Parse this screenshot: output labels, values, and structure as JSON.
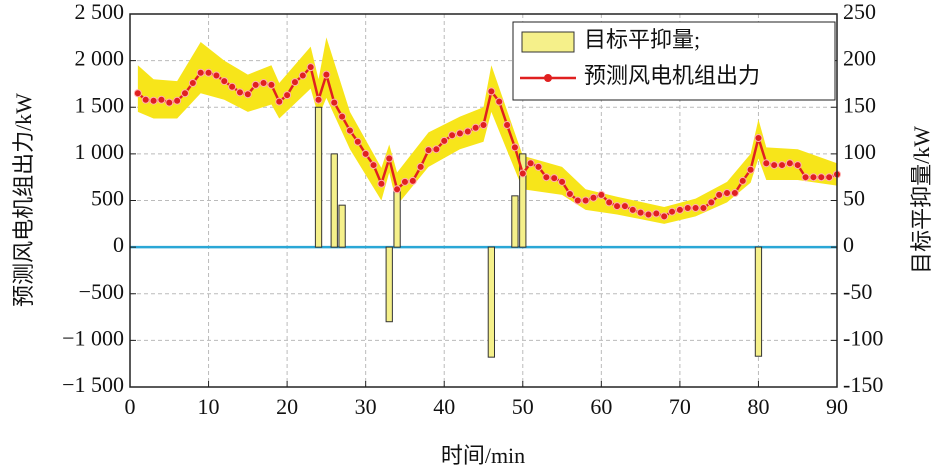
{
  "chart_data": {
    "type": "line",
    "xlabel": "时间/min",
    "ylabel": "预测风电机组出力/kW",
    "y2label": "目标平抑量/kW",
    "xlim": [
      0,
      90
    ],
    "xticks": [
      0,
      10,
      20,
      30,
      40,
      50,
      60,
      70,
      80,
      90
    ],
    "ylim": [
      -1500,
      2500
    ],
    "yticks": [
      {
        "value": -1500,
        "label": "−1 500"
      },
      {
        "value": -1000,
        "label": "−1 000"
      },
      {
        "value": -500,
        "label": "−500"
      },
      0,
      500,
      {
        "value": 1000,
        "label": "1 000"
      },
      {
        "value": 1500,
        "label": "1 500"
      },
      {
        "value": 2000,
        "label": "2 000"
      },
      {
        "value": 2500,
        "label": "2 500"
      }
    ],
    "y2lim": [
      -150,
      250
    ],
    "y2ticks": [
      -150,
      -100,
      -50,
      0,
      50,
      100,
      150,
      200,
      250
    ],
    "grid": true,
    "legend": "upper right",
    "zero_line_color": "#2aa7d6",
    "band": {
      "color": "#f7e51a",
      "x": [
        1,
        3,
        6,
        9,
        12,
        15,
        18,
        19,
        23,
        24,
        25,
        28,
        32,
        33,
        34,
        38,
        42,
        45,
        46,
        50,
        55,
        58,
        62,
        68,
        72,
        76,
        79,
        80,
        81,
        85,
        90
      ],
      "lower": [
        1450,
        1380,
        1380,
        1650,
        1580,
        1450,
        1530,
        1380,
        1700,
        1400,
        1600,
        1050,
        500,
        800,
        450,
        860,
        1050,
        1130,
        1450,
        620,
        560,
        400,
        350,
        250,
        330,
        480,
        690,
        950,
        720,
        720,
        660
      ],
      "upper": [
        1950,
        1800,
        1780,
        2200,
        2000,
        1850,
        1950,
        1760,
        2150,
        1800,
        2250,
        1450,
        850,
        1100,
        800,
        1230,
        1400,
        1500,
        1950,
        980,
        860,
        620,
        540,
        430,
        520,
        700,
        1000,
        1370,
        1070,
        1050,
        900
      ]
    },
    "series": [
      {
        "name": "目标平抑量;",
        "type": "bar",
        "axis": "y2",
        "color": "#f5f08a",
        "x": [
          24,
          26,
          27,
          33,
          34,
          46,
          49,
          50,
          80
        ],
        "values": [
          150,
          100,
          45,
          -80,
          60,
          -118,
          55,
          100,
          -117
        ]
      },
      {
        "name": "预测风电机组出力",
        "type": "line",
        "color": "#e02020",
        "x": [
          1,
          2,
          3,
          4,
          5,
          6,
          7,
          8,
          9,
          10,
          11,
          12,
          13,
          14,
          15,
          16,
          17,
          18,
          19,
          20,
          21,
          22,
          23,
          24,
          25,
          26,
          27,
          28,
          29,
          30,
          31,
          32,
          33,
          34,
          35,
          36,
          37,
          38,
          39,
          40,
          41,
          42,
          43,
          44,
          45,
          46,
          47,
          48,
          49,
          50,
          51,
          52,
          53,
          54,
          55,
          56,
          57,
          58,
          59,
          60,
          61,
          62,
          63,
          64,
          65,
          66,
          67,
          68,
          69,
          70,
          71,
          72,
          73,
          74,
          75,
          76,
          77,
          78,
          79,
          80,
          81,
          82,
          83,
          84,
          85,
          86,
          87,
          88,
          89,
          90
        ],
        "values": [
          1650,
          1580,
          1570,
          1580,
          1550,
          1570,
          1650,
          1760,
          1870,
          1870,
          1840,
          1780,
          1720,
          1660,
          1640,
          1740,
          1760,
          1740,
          1560,
          1630,
          1770,
          1840,
          1930,
          1580,
          1850,
          1550,
          1400,
          1250,
          1130,
          1000,
          880,
          680,
          950,
          620,
          700,
          710,
          860,
          1040,
          1050,
          1140,
          1200,
          1220,
          1240,
          1280,
          1310,
          1670,
          1560,
          1310,
          1070,
          790,
          900,
          860,
          750,
          740,
          700,
          570,
          500,
          500,
          530,
          560,
          480,
          440,
          440,
          400,
          370,
          350,
          360,
          330,
          380,
          400,
          420,
          420,
          420,
          480,
          560,
          580,
          580,
          710,
          830,
          1170,
          900,
          880,
          880,
          900,
          880,
          750,
          750,
          750,
          750,
          780
        ]
      }
    ]
  }
}
